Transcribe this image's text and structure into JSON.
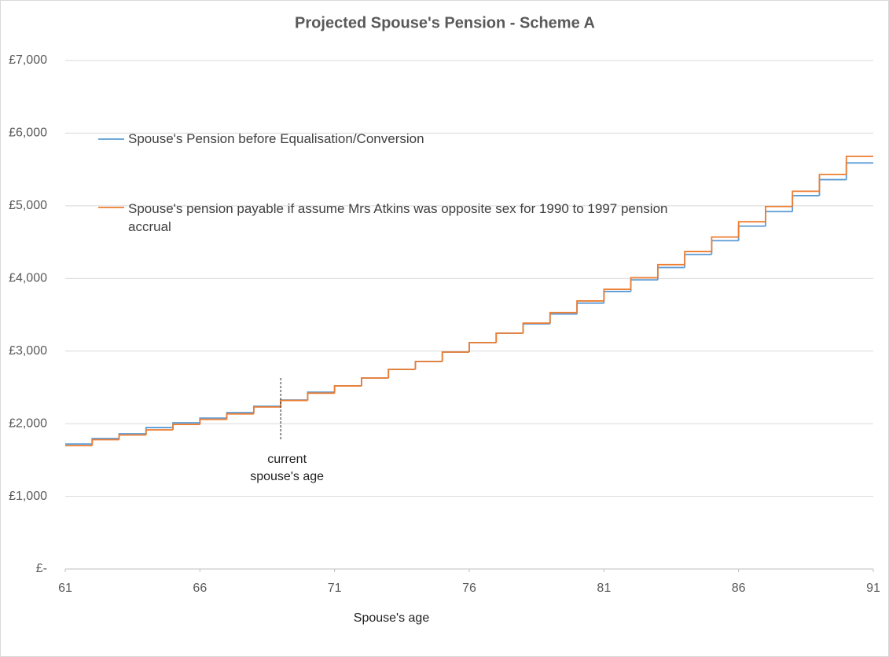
{
  "chart_data": {
    "type": "line",
    "step": "post",
    "title": "Projected Spouse's Pension - Scheme A",
    "x_label": "Spouse's age",
    "x": [
      61,
      62,
      63,
      64,
      65,
      66,
      67,
      68,
      69,
      70,
      71,
      72,
      73,
      74,
      75,
      76,
      77,
      78,
      79,
      80,
      81,
      82,
      83,
      84,
      85,
      86,
      87,
      88,
      89,
      90
    ],
    "series": [
      {
        "name": "Spouse's Pension before Equalisation/Conversion",
        "color": "#5b9bd5",
        "values": [
          1720,
          1796,
          1861,
          1947,
          2012,
          2077,
          2153,
          2240,
          2326,
          2434,
          2520,
          2629,
          2748,
          2856,
          2986,
          3116,
          3246,
          3375,
          3510,
          3660,
          3820,
          3980,
          4150,
          4330,
          4520,
          4720,
          4920,
          5140,
          5360,
          5590
        ]
      },
      {
        "name": "Spouse's pension payable if assume Mrs Atkins was opposite sex for 1990 to 1997 pension accrual",
        "color": "#ed7d31",
        "values": [
          1700,
          1780,
          1845,
          1915,
          1990,
          2060,
          2135,
          2230,
          2320,
          2420,
          2520,
          2629,
          2748,
          2856,
          2986,
          3116,
          3246,
          3385,
          3530,
          3690,
          3850,
          4010,
          4190,
          4370,
          4570,
          4780,
          4990,
          5200,
          5430,
          5680
        ]
      }
    ],
    "xlim": [
      61,
      91
    ],
    "xticks": [
      61,
      66,
      71,
      76,
      81,
      86,
      91
    ],
    "ylim": [
      0,
      7000
    ],
    "yticks": [
      {
        "value": 0,
        "label": "£-"
      },
      {
        "value": 1000,
        "label": "£1,000"
      },
      {
        "value": 2000,
        "label": "£2,000"
      },
      {
        "value": 3000,
        "label": "£3,000"
      },
      {
        "value": 4000,
        "label": "£4,000"
      },
      {
        "value": 5000,
        "label": "£5,000"
      },
      {
        "value": 6000,
        "label": "£6,000"
      },
      {
        "value": 7000,
        "label": "£7,000"
      }
    ],
    "grid": true,
    "annotation": {
      "text": "current spouse's age",
      "x": 69
    }
  }
}
